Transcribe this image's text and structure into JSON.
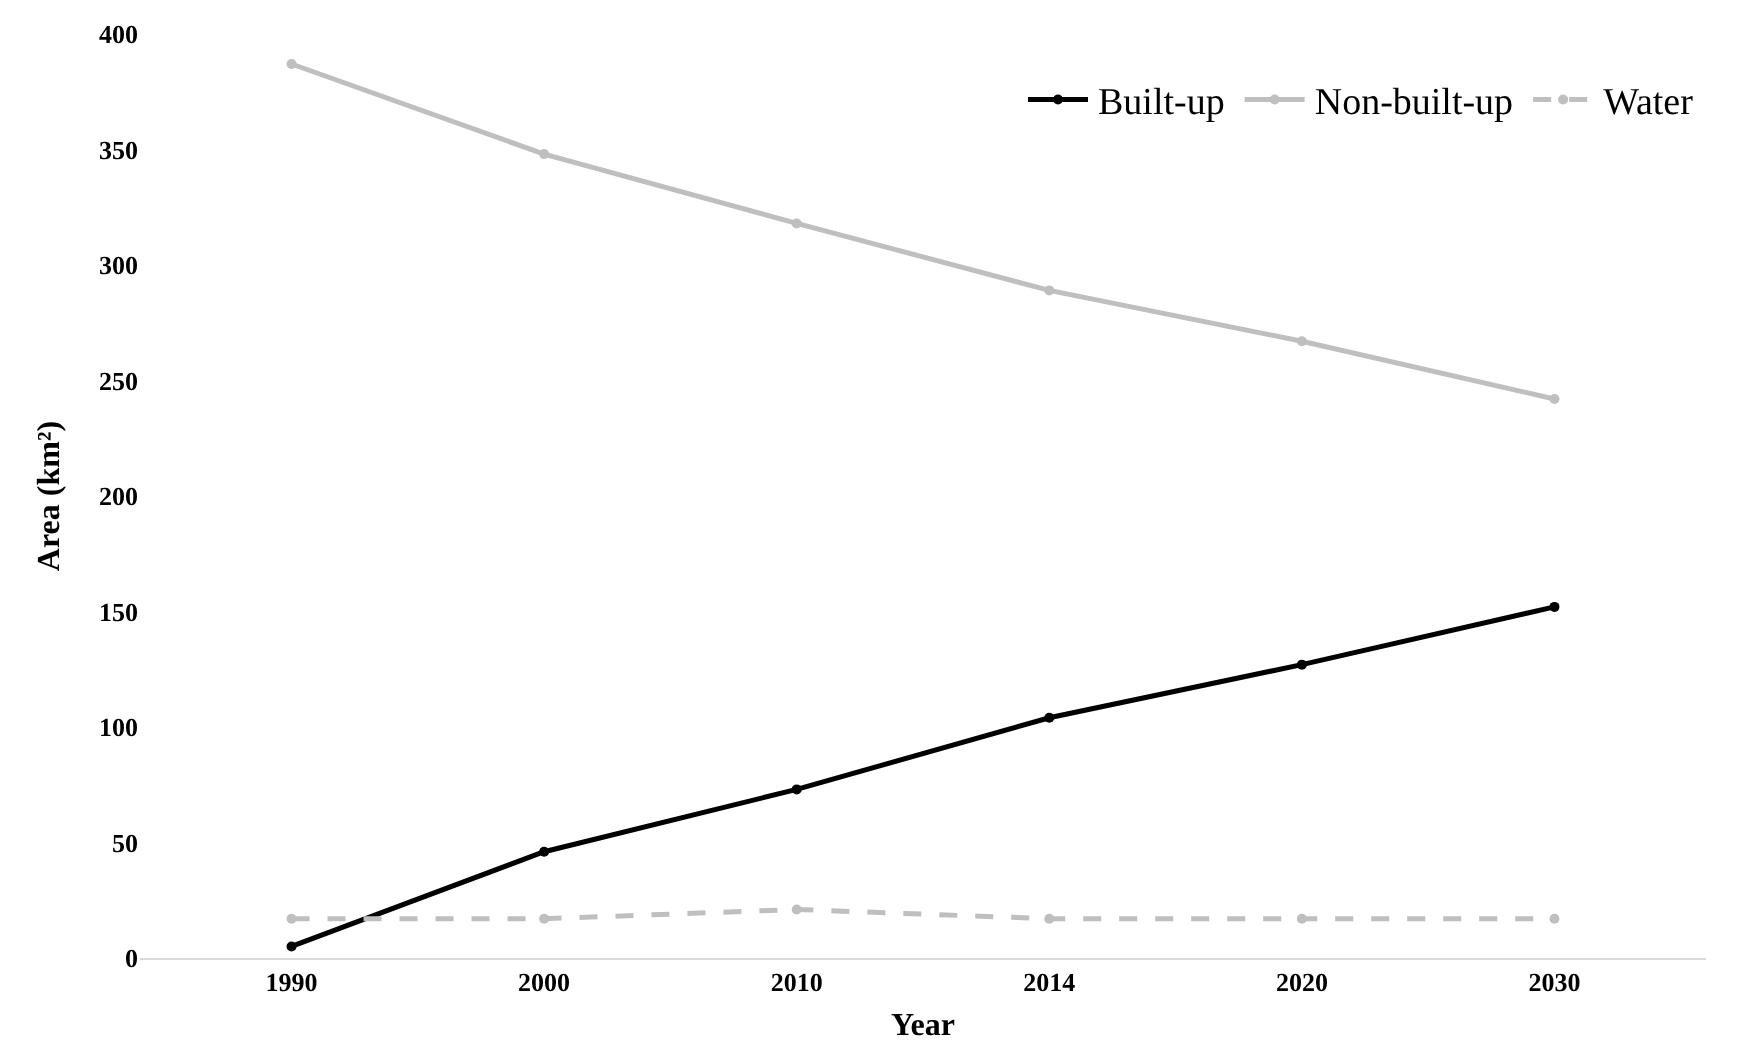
{
  "chart_data": {
    "type": "line",
    "xlabel": "Year",
    "ylabel": "Area (km²)",
    "categories": [
      "1990",
      "2000",
      "2010",
      "2014",
      "2020",
      "2030"
    ],
    "series": [
      {
        "name": "Built-up",
        "color": "#000000",
        "values": [
          5,
          46,
          73,
          104,
          127,
          152
        ]
      },
      {
        "name": "Non-built-up",
        "color": "#bfbfbf",
        "values": [
          387,
          348,
          318,
          289,
          267,
          242
        ]
      },
      {
        "name": "Water",
        "color": "#bfbfbf",
        "values": [
          17,
          17,
          21,
          17,
          17,
          17
        ],
        "line_style": "dashed"
      }
    ],
    "ylim": [
      0,
      400
    ],
    "yticks": [
      0,
      50,
      100,
      150,
      200,
      250,
      300,
      350,
      400
    ],
    "legend": "top right",
    "marker": "circle",
    "line_style": "solid"
  }
}
